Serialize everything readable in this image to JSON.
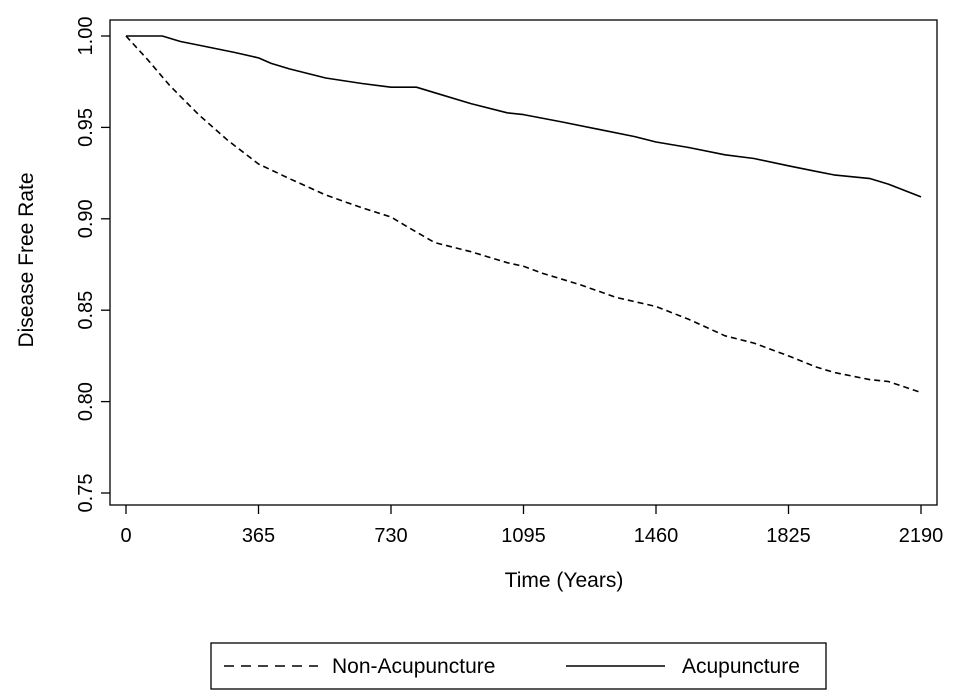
{
  "chart_data": {
    "type": "line",
    "title": "",
    "xlabel": "Time (Years)",
    "ylabel": "Disease Free Rate",
    "xlim": [
      0,
      2190
    ],
    "ylim": [
      0.75,
      1.0
    ],
    "x_ticks": [
      0,
      365,
      730,
      1095,
      1460,
      1825,
      2190
    ],
    "x_tick_labels": [
      "0",
      "365",
      "730",
      "1095",
      "1460",
      "1825",
      "2190"
    ],
    "y_ticks": [
      0.75,
      0.8,
      0.85,
      0.9,
      0.95,
      1.0
    ],
    "y_tick_labels": [
      "0.75",
      "0.80",
      "0.85",
      "0.90",
      "0.95",
      "1.00"
    ],
    "grid": false,
    "legend_position": "bottom-center",
    "series": [
      {
        "name": "Non-Acupuncture",
        "style": "dashed",
        "color": "#000000",
        "x": [
          0,
          60,
          120,
          200,
          280,
          365,
          450,
          550,
          650,
          730,
          780,
          850,
          950,
          1050,
          1095,
          1150,
          1250,
          1350,
          1460,
          1550,
          1650,
          1730,
          1825,
          1900,
          1950,
          2050,
          2100,
          2190
        ],
        "y": [
          1.0,
          0.987,
          0.973,
          0.957,
          0.943,
          0.93,
          0.922,
          0.913,
          0.906,
          0.901,
          0.895,
          0.887,
          0.882,
          0.876,
          0.874,
          0.87,
          0.864,
          0.857,
          0.852,
          0.845,
          0.836,
          0.832,
          0.825,
          0.819,
          0.816,
          0.812,
          0.811,
          0.805
        ]
      },
      {
        "name": "Acupuncture",
        "style": "solid",
        "color": "#000000",
        "x": [
          0,
          30,
          100,
          150,
          200,
          300,
          365,
          400,
          450,
          550,
          650,
          730,
          800,
          850,
          950,
          1050,
          1095,
          1200,
          1300,
          1400,
          1460,
          1550,
          1650,
          1730,
          1825,
          1900,
          1950,
          2050,
          2100,
          2190
        ],
        "y": [
          1.0,
          1.0,
          1.0,
          0.997,
          0.995,
          0.991,
          0.988,
          0.985,
          0.982,
          0.977,
          0.974,
          0.972,
          0.972,
          0.969,
          0.963,
          0.958,
          0.957,
          0.953,
          0.949,
          0.945,
          0.942,
          0.939,
          0.935,
          0.933,
          0.929,
          0.926,
          0.924,
          0.922,
          0.919,
          0.912
        ]
      }
    ]
  }
}
